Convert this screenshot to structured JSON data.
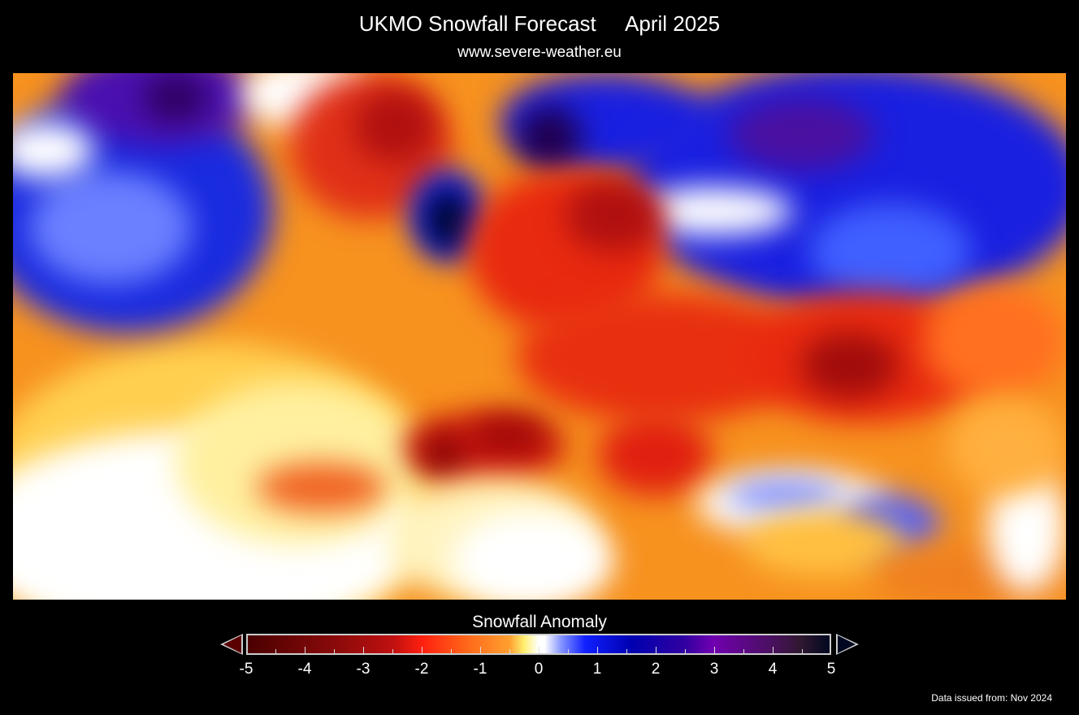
{
  "header": {
    "title": "UKMO Snowfall Forecast",
    "period": "April 2025",
    "subtitle": "www.severe-weather.eu"
  },
  "legend": {
    "title": "Snowfall Anomaly",
    "ticks": [
      "-5",
      "-4",
      "-3",
      "-2",
      "-1",
      "0",
      "1",
      "2",
      "3",
      "4",
      "5"
    ],
    "range": [
      -5,
      5
    ],
    "colors": {
      "min": "#4a0000",
      "neg": "#ff2010",
      "zero": "#ffffff",
      "pos": "#1020ff",
      "max": "#000820"
    }
  },
  "footer": {
    "issued": "Data issued from: Nov 2024"
  }
}
